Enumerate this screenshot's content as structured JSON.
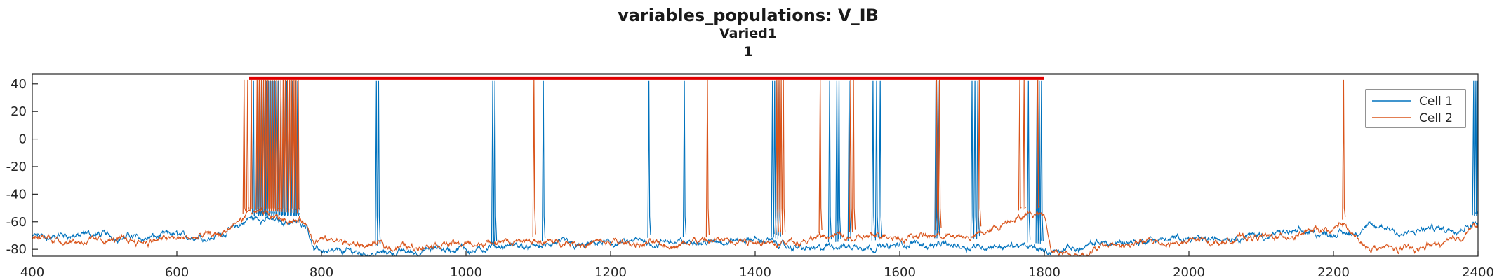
{
  "chart_data": {
    "type": "line",
    "title": "variables_populations: V_IB",
    "subtitle": "Varied1",
    "subsubtitle": "1",
    "xlabel": "",
    "ylabel": "",
    "xlim": [
      400,
      2400
    ],
    "ylim": [
      -85,
      47
    ],
    "xticks": [
      400,
      600,
      800,
      1000,
      1200,
      1400,
      1600,
      1800,
      2000,
      2200,
      2400
    ],
    "yticks": [
      -80,
      -60,
      -40,
      -20,
      0,
      20,
      40
    ],
    "grid": false,
    "legend_position": "top-right",
    "colors": {
      "cell1": "#0072BD",
      "cell2": "#D95319",
      "marker": "#E00000"
    },
    "marker_line": {
      "x": [
        700,
        1800
      ],
      "y": 44
    },
    "series": [
      {
        "name": "Cell 1",
        "baseline": [
          [
            400,
            -71
          ],
          [
            650,
            -70
          ],
          [
            690,
            -62
          ],
          [
            700,
            -58
          ],
          [
            780,
            -60
          ],
          [
            790,
            -80
          ],
          [
            860,
            -82
          ],
          [
            1040,
            -80
          ],
          [
            1100,
            -78
          ],
          [
            1300,
            -75
          ],
          [
            1420,
            -74
          ],
          [
            1450,
            -80
          ],
          [
            1640,
            -76
          ],
          [
            1700,
            -76
          ],
          [
            1800,
            -80
          ],
          [
            1820,
            -82
          ],
          [
            1900,
            -75
          ],
          [
            2000,
            -72
          ],
          [
            2100,
            -70
          ],
          [
            2200,
            -68
          ],
          [
            2260,
            -65
          ],
          [
            2300,
            -68
          ],
          [
            2360,
            -65
          ],
          [
            2390,
            -60
          ],
          [
            2400,
            -58
          ]
        ],
        "spikes": [
          706,
          712,
          715,
          718,
          722,
          724,
          727,
          730,
          733,
          736,
          740,
          744,
          748,
          752,
          756,
          760,
          764,
          767,
          876,
          879,
          1037,
          1040,
          1107,
          1253,
          1302,
          1424,
          1427,
          1430,
          1433,
          1503,
          1513,
          1516,
          1530,
          1563,
          1568,
          1573,
          1650,
          1653,
          1700,
          1704,
          1708,
          1778,
          1790,
          1793,
          1796,
          2394,
          2397,
          2399
        ],
        "spike_peak": 42,
        "spike_trough": -56
      },
      {
        "name": "Cell 2",
        "baseline": [
          [
            400,
            -72
          ],
          [
            650,
            -72
          ],
          [
            680,
            -65
          ],
          [
            700,
            -55
          ],
          [
            775,
            -58
          ],
          [
            790,
            -75
          ],
          [
            860,
            -78
          ],
          [
            1000,
            -76
          ],
          [
            1100,
            -75
          ],
          [
            1300,
            -76
          ],
          [
            1500,
            -72
          ],
          [
            1640,
            -70
          ],
          [
            1700,
            -72
          ],
          [
            1760,
            -56
          ],
          [
            1800,
            -54
          ],
          [
            1810,
            -80
          ],
          [
            1840,
            -85
          ],
          [
            1900,
            -76
          ],
          [
            2000,
            -74
          ],
          [
            2150,
            -70
          ],
          [
            2200,
            -65
          ],
          [
            2210,
            -60
          ],
          [
            2240,
            -78
          ],
          [
            2300,
            -80
          ],
          [
            2350,
            -76
          ],
          [
            2390,
            -64
          ],
          [
            2400,
            -62
          ]
        ],
        "spikes": [
          693,
          698,
          703,
          711,
          714,
          717,
          720,
          723,
          726,
          729,
          732,
          735,
          738,
          741,
          744,
          747,
          750,
          753,
          756,
          759,
          762,
          765,
          768,
          1094,
          1334,
          1430,
          1433,
          1436,
          1439,
          1490,
          1532,
          1536,
          1651,
          1655,
          1710,
          1766,
          1772,
          1791,
          2214
        ],
        "spike_peak": 43,
        "spike_trough": -50
      }
    ]
  }
}
